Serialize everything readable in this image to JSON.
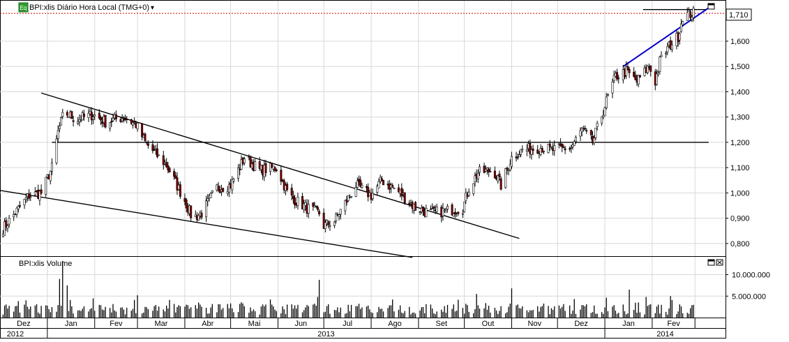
{
  "header": {
    "badge": "Eq",
    "title": "BPI:xlis Diário Hora Local (TMG+0)",
    "dropdown_arrow": "▾"
  },
  "volume_panel": {
    "title": "BPI:xlis Volume"
  },
  "last_price_label": "1,710",
  "icons": {
    "price_restore": "window-restore-icon",
    "volume_restore": "window-restore-icon",
    "volume_close": "close-icon"
  },
  "colors": {
    "up_candle": "#ffffff",
    "down_candle": "#800000",
    "trendline": "#000000",
    "blue_trendline": "#0000cc",
    "last_price_line": "#cc0000",
    "volume_bar": "#000000"
  },
  "chart_data": [
    {
      "type": "candlestick",
      "title": "BPI:xlis Diário Hora Local (TMG+0)",
      "ylim": [
        0.75,
        1.76
      ],
      "y_ticks": [
        "0,800",
        "0,900",
        "1,000",
        "1,100",
        "1,200",
        "1,300",
        "1,400",
        "1,500",
        "1,600",
        "1,710"
      ],
      "y_tick_values": [
        0.8,
        0.9,
        1.0,
        1.1,
        1.2,
        1.3,
        1.4,
        1.5,
        1.6
      ],
      "last_price": 1.71,
      "x_month_labels": [
        "Dez",
        "Jan",
        "Fev",
        "Mar",
        "Abr",
        "Mai",
        "Jun",
        "Jul",
        "Ago",
        "Set",
        "Out",
        "Nov",
        "Dez",
        "Jan",
        "Fev"
      ],
      "x_year_labels": [
        "2012",
        "2013",
        "2014"
      ],
      "anchor_closes": [
        [
          "2012-12-03",
          0.86
        ],
        [
          "2012-12-20",
          0.99
        ],
        [
          "2012-12-28",
          1.0
        ],
        [
          "2013-01-04",
          1.1
        ],
        [
          "2013-01-08",
          1.24
        ],
        [
          "2013-01-12",
          1.32
        ],
        [
          "2013-01-20",
          1.29
        ],
        [
          "2013-01-31",
          1.31
        ],
        [
          "2013-02-08",
          1.28
        ],
        [
          "2013-02-20",
          1.3
        ],
        [
          "2013-02-28",
          1.27
        ],
        [
          "2013-03-06",
          1.2
        ],
        [
          "2013-03-12",
          1.16
        ],
        [
          "2013-03-20",
          1.11
        ],
        [
          "2013-04-01",
          0.97
        ],
        [
          "2013-04-06",
          0.9
        ],
        [
          "2013-04-12",
          0.92
        ],
        [
          "2013-04-22",
          1.02
        ],
        [
          "2013-05-01",
          1.03
        ],
        [
          "2013-05-10",
          1.14
        ],
        [
          "2013-05-20",
          1.09
        ],
        [
          "2013-05-31",
          1.1
        ],
        [
          "2013-06-08",
          0.99
        ],
        [
          "2013-06-20",
          0.94
        ],
        [
          "2013-06-28",
          0.92
        ],
        [
          "2013-07-01",
          0.87
        ],
        [
          "2013-07-08",
          0.89
        ],
        [
          "2013-07-14",
          0.95
        ],
        [
          "2013-07-22",
          1.03
        ],
        [
          "2013-08-01",
          0.99
        ],
        [
          "2013-08-08",
          1.05
        ],
        [
          "2013-08-20",
          1.0
        ],
        [
          "2013-08-30",
          0.94
        ],
        [
          "2013-09-10",
          0.92
        ],
        [
          "2013-09-20",
          0.93
        ],
        [
          "2013-09-30",
          0.94
        ],
        [
          "2013-10-04",
          1.02
        ],
        [
          "2013-10-10",
          1.08
        ],
        [
          "2013-10-20",
          1.09
        ],
        [
          "2013-10-25",
          1.03
        ],
        [
          "2013-11-01",
          1.14
        ],
        [
          "2013-11-08",
          1.17
        ],
        [
          "2013-11-20",
          1.18
        ],
        [
          "2013-11-28",
          1.17
        ],
        [
          "2013-12-10",
          1.18
        ],
        [
          "2013-12-17",
          1.25
        ],
        [
          "2013-12-24",
          1.2
        ],
        [
          "2014-01-03",
          1.38
        ],
        [
          "2014-01-08",
          1.46
        ],
        [
          "2014-01-15",
          1.48
        ],
        [
          "2014-01-22",
          1.44
        ],
        [
          "2014-01-30",
          1.5
        ],
        [
          "2014-02-03",
          1.44
        ],
        [
          "2014-02-06",
          1.52
        ],
        [
          "2014-02-12",
          1.58
        ],
        [
          "2014-02-18",
          1.62
        ],
        [
          "2014-02-21",
          1.7
        ],
        [
          "2014-02-28",
          1.71
        ]
      ],
      "annotations": {
        "horizontal_support": 1.2,
        "last_price_line": 1.71,
        "upper_resistance": 1.725,
        "descending_channel_upper": [
          [
            "2012-12-28",
            1.395
          ],
          [
            "2013-11-06",
            0.82
          ]
        ],
        "descending_channel_lower": [
          [
            "2012-12-01",
            1.01
          ],
          [
            "2013-08-28",
            0.745
          ]
        ],
        "blue_trendline": [
          [
            "2014-01-13",
            1.5
          ],
          [
            "2014-03-12",
            1.74
          ]
        ]
      }
    },
    {
      "type": "bar",
      "title": "BPI:xlis Volume",
      "ylim": [
        0,
        13500000
      ],
      "y_ticks": [
        "5.000.000",
        "10.000.000"
      ],
      "y_tick_values": [
        5000000,
        10000000
      ],
      "spikes": [
        [
          "2013-01-11",
          13200000
        ],
        [
          "2013-01-09",
          9000000
        ],
        [
          "2013-01-14",
          7500000
        ],
        [
          "2013-06-28",
          8800000
        ],
        [
          "2013-06-27",
          4800000
        ],
        [
          "2013-11-01",
          6800000
        ],
        [
          "2013-10-09",
          5500000
        ],
        [
          "2014-01-17",
          6500000
        ],
        [
          "2014-02-13",
          5000000
        ],
        [
          "2014-01-28",
          4800000
        ],
        [
          "2013-03-01",
          5200000
        ]
      ]
    }
  ]
}
